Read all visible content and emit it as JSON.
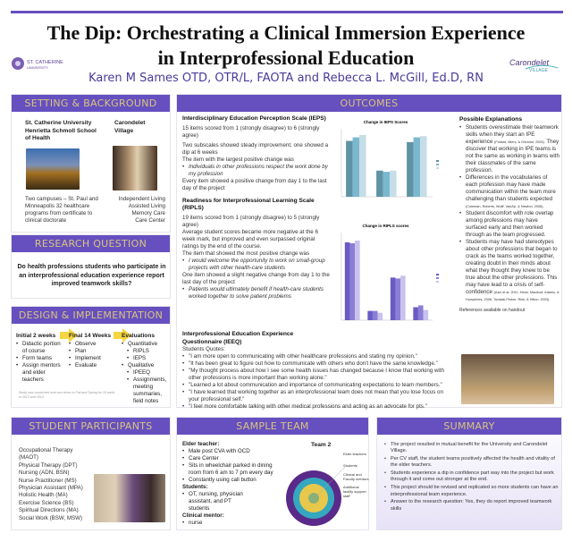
{
  "header": {
    "title_line1": "The Dip: Orchestrating a Clinical Immersion Experience",
    "title_line2": "in Interprofessional Education",
    "authors": "Karen M Sames OTD, OTR/L, FAOTA and Rebecca L. McGill, Ed.D, RN",
    "logo_left": "St. Catherine University",
    "logo_right": "Carondelet Village"
  },
  "colors": {
    "header_bg": "#6650c0",
    "header_text": "#d9c57c",
    "accent": "#6650c0"
  },
  "setting": {
    "heading": "SETTING & BACKGROUND",
    "left_title": "St. Catherine University Henrietta Schmoll School of Health",
    "right_title": "Carondelet Village",
    "left_text": "Two campuses – St. Paul and Minneapolis 32 healthcare programs from certificate to clinical doctorate",
    "right_lines": [
      "Independent Living",
      "Assisted Living",
      "Memory Care",
      "Care Center"
    ]
  },
  "research": {
    "heading": "RESEARCH QUESTION",
    "question": "Do health professions students who participate in an interprofessional education experience report improved teamwork skills?"
  },
  "design": {
    "heading": "DESIGN & IMPLEMENTATION",
    "col1": {
      "title": "Initial 2 weeks",
      "items": [
        "Didactic portion of course",
        "Form teams",
        "Assign mentors and elder teachers"
      ]
    },
    "col2": {
      "title": "Final 14 Weeks",
      "items": [
        "Observe",
        "Plan",
        "Implement",
        "Evaluate"
      ]
    },
    "col3": {
      "title": "Evaluations",
      "items": [
        "Quantitative",
        "RIPLS",
        "IEPS",
        "Qualitative",
        "IPEEQ",
        "Assignments, meeting summaries, field notes"
      ]
    },
    "note": "Study was conducted over two terms in Fall and Spring for 16 week in 2013 and 2014"
  },
  "outcomes": {
    "heading": "OUTCOMES",
    "ieps": {
      "title": "Interdisciplinary Education Perception Scale (IEPS)",
      "p1": "15 items scored from 1 (strongly disagree) to 6 (strongly agree)",
      "p2": "Two subscales showed steady improvement, one showed a dip at 6 weeks",
      "p3": "The item with the largest positive change was",
      "quote": "Individuals in other professions respect the work done by my profession",
      "p4": "Every item showed a positive change from day 1 to the last day of the project"
    },
    "ripls": {
      "title": "Readiness for Interprofessional Learning Scale (RIPLS)",
      "p1": "19 items scored from 1 (strongly disagree) to 5 (strongly agree)",
      "p2": "Average student scores became more negative at the 6 week mark, but improved and even surpassed original ratings by the end of the course.",
      "p3": "The item that showed the most positive change was",
      "quote1": "I would welcome the opportunity to work on small-group projects with other health-care students",
      "p4": "One item showed a slight negative change from day 1 to the last day of the project",
      "quote2": "Patients would ultimately benefit if health-care students worked together to solve patient problems"
    },
    "ipeeq": {
      "title": "Interprofessional Education Experience Questionnaire (IEEQ)",
      "intro": "Students Quotes:",
      "quotes": [
        "\"I am more open to communicating with other healthcare professions and stating my opinion.\"",
        "\"It has been great to figure out how to communicate with others who don't have the same knowledge.\"",
        "\"My thought process about how I see some health issues has changed because I know that working with other professions is more important than working alone.\"",
        "\"Learned a lot about communication and importance of communicating expectations to team members.\"",
        "\"I have learned that working together as an interprofessional team does not mean that you lose focus on your professional self.\"",
        "\"I feel more comfortable talking with other medical professions and acting as an advocate for pts.\""
      ]
    },
    "explanations": {
      "title": "Possible Explanations",
      "items": [
        {
          "text": "Students overestimate their teamwork skills when they start an IPE experience",
          "cite": "(Pollard, Miers, & Gilchrist, 2005).",
          "after": " They discover that working in IPE teams is not the same as working in teams with their classmates of the same profession."
        },
        {
          "text": "Differences in the vocabularies of each profession may have made communication within the team more challenging than students expected",
          "cite": "(Coleman, Roberts, Wulff, VanZyl, & Newton, 2008).",
          "after": ""
        },
        {
          "text": "Student discomfort with role overlap among professions may have surfaced early and then worked through as the team progressed.",
          "cite": "",
          "after": ""
        },
        {
          "text": "Students may have had stereotypes about other professions that began to crack as the teams worked together, creating doubt in their minds about what they thought they knew to be true about the other professions. This may have lead to a crisis of self-confidence",
          "cite": "(Aziz et al. 2011; Hean, Macleod, Adams, & Humphries, 2006; Tunstall-Pedoe, Rink, & Hilton, 2003).",
          "after": ""
        }
      ],
      "references": "References available on handout"
    }
  },
  "chart_data": [
    {
      "type": "bar",
      "title": "Change in IEPS Scores",
      "groups": 3,
      "series_count": 3,
      "values": [
        [
          4.7,
          5.0,
          5.2
        ],
        [
          2.2,
          2.1,
          2.2
        ],
        [
          4.6,
          5.0,
          5.1
        ]
      ],
      "colors": [
        "#5f93a3",
        "#7bb8cf",
        "#c5dde6"
      ]
    },
    {
      "type": "bar",
      "title": "Change in RIPLS scores",
      "groups": 4,
      "series_count": 3,
      "values": [
        [
          4.2,
          4.15,
          4.3
        ],
        [
          0.5,
          0.5,
          0.4
        ],
        [
          2.3,
          2.25,
          2.4
        ],
        [
          0.7,
          0.8,
          0.55
        ]
      ],
      "colors": [
        "#6a5bc4",
        "#8b7ed6",
        "#c9c2ec"
      ]
    }
  ],
  "participants": {
    "heading": "STUDENT PARTICIPANTS",
    "items": [
      "Occupational Therapy (MAOT)",
      "Physical Therapy (DPT)",
      "Nursing (ADN, BSN)",
      "Nurse Practitioner (MS)",
      "Physician Assistant (MPA)",
      "Holistic Health (MA)",
      "Exercise Science (BS)",
      "Spiritual Directions (MA)",
      "Social Work (BSW, MSW)"
    ]
  },
  "sample_team": {
    "heading": "SAMPLE TEAM",
    "elder_label": "Elder teacher:",
    "elder_items": [
      "Male post CVA with OCD",
      "Care Center",
      "Sits in wheelchair parked in dining room from 6 am to 7 pm every day",
      "Constantly using call button"
    ],
    "students_label": "Students:",
    "students_items": [
      "OT, nursing, physician assistant, and PT students"
    ],
    "mentor_label": "Clinical mentor:",
    "mentor_items": [
      "nurse"
    ],
    "diagram_title": "Team 2",
    "rings": [
      "Elder teachers",
      "Students",
      "Clinical and Faculty mentors",
      "Additional facility support staff"
    ]
  },
  "summary": {
    "heading": "SUMMARY",
    "items": [
      "The project resulted in mutual benefit for the University and Carondelet Village.",
      "Per CV staff, the student teams positively affected the health and vitality of the elder teachers.",
      "Students experience a dip in confidence part way into the project but work through it and come out stronger at the end.",
      "This project should be revised and replicated so more students can have an interprofessional team experience.",
      "Answer to the research question: Yes, they do report improved teamwork skills"
    ]
  }
}
